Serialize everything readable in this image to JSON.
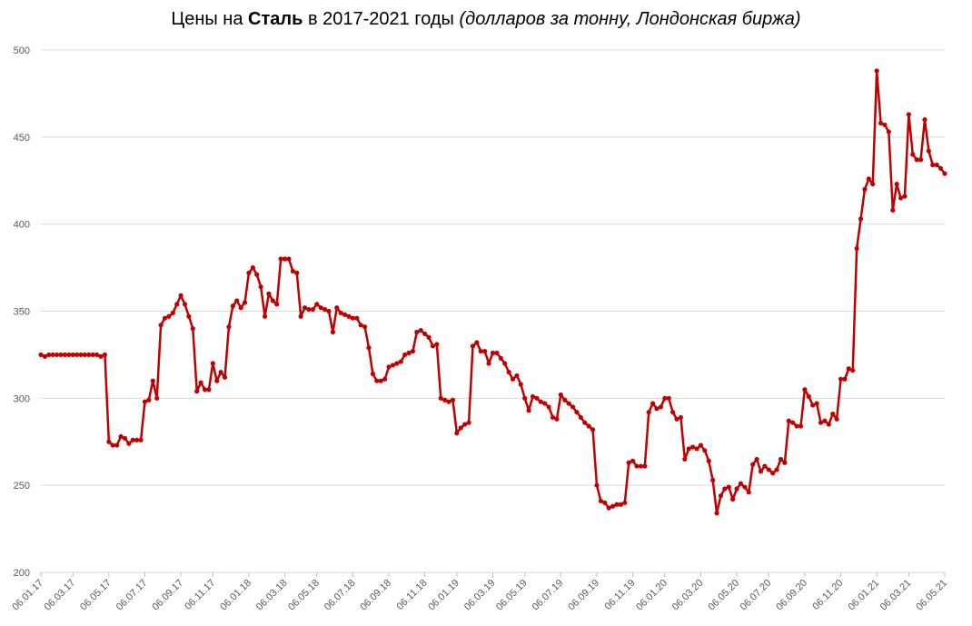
{
  "chart_data": {
    "type": "line",
    "title": [
      "Цены на ",
      "Сталь",
      " в 2017-2021 годы ",
      "(долларов за тонну, Лондонская биржа)"
    ],
    "categories": [
      "06.01.17",
      null,
      null,
      null,
      null,
      null,
      null,
      null,
      "06.03.17",
      null,
      null,
      null,
      null,
      null,
      null,
      null,
      null,
      "06.05.17",
      null,
      null,
      null,
      null,
      null,
      null,
      null,
      null,
      "06.07.17",
      null,
      null,
      null,
      null,
      null,
      null,
      null,
      null,
      "06.09.17",
      null,
      null,
      null,
      null,
      null,
      null,
      null,
      "06.11.17",
      null,
      null,
      null,
      null,
      null,
      null,
      null,
      null,
      "06.01.18",
      null,
      null,
      null,
      null,
      null,
      null,
      null,
      null,
      "06.03.18",
      null,
      null,
      null,
      null,
      null,
      null,
      null,
      "06.05.18",
      null,
      null,
      null,
      null,
      null,
      null,
      null,
      null,
      "06.07.18",
      null,
      null,
      null,
      null,
      null,
      null,
      null,
      null,
      "06.09.18",
      null,
      null,
      null,
      null,
      null,
      null,
      null,
      null,
      "06.11.18",
      null,
      null,
      null,
      null,
      null,
      null,
      null,
      "06.01.19",
      null,
      null,
      null,
      null,
      null,
      null,
      null,
      null,
      "06.03.19",
      null,
      null,
      null,
      null,
      null,
      null,
      null,
      "06.05.19",
      null,
      null,
      null,
      null,
      null,
      null,
      null,
      null,
      "06.07.19",
      null,
      null,
      null,
      null,
      null,
      null,
      null,
      null,
      "06.09.19",
      null,
      null,
      null,
      null,
      null,
      null,
      null,
      null,
      "06.11.19",
      null,
      null,
      null,
      null,
      null,
      null,
      null,
      "06.01.20",
      null,
      null,
      null,
      null,
      null,
      null,
      null,
      null,
      "06.03.20",
      null,
      null,
      null,
      null,
      null,
      null,
      null,
      null,
      "06.05.20",
      null,
      null,
      null,
      null,
      null,
      null,
      null,
      "06.07.20",
      null,
      null,
      null,
      null,
      null,
      null,
      null,
      null,
      "06.09.20",
      null,
      null,
      null,
      null,
      null,
      null,
      null,
      null,
      "06.11.20",
      null,
      null,
      null,
      null,
      null,
      null,
      null,
      null,
      "06.01.21",
      null,
      null,
      null,
      null,
      null,
      null,
      null,
      "06.03.21",
      null,
      null,
      null,
      null,
      null,
      null,
      null,
      null,
      "06.05.21"
    ],
    "values": [
      325,
      324,
      325,
      325,
      325,
      325,
      325,
      325,
      325,
      325,
      325,
      325,
      325,
      325,
      325,
      324,
      325,
      275,
      273,
      273,
      278,
      277,
      274,
      276,
      276,
      276,
      298,
      299,
      310,
      300,
      342,
      346,
      347,
      349,
      354,
      359,
      354,
      347,
      340,
      304,
      309,
      305,
      305,
      320,
      310,
      315,
      312,
      341,
      353,
      356,
      352,
      355,
      372,
      375,
      371,
      364,
      347,
      360,
      356,
      354,
      380,
      380,
      380,
      373,
      372,
      347,
      352,
      351,
      351,
      354,
      352,
      351,
      350,
      338,
      352,
      349,
      348,
      347,
      346,
      346,
      342,
      341,
      329,
      314,
      310,
      310,
      311,
      318,
      319,
      320,
      321,
      325,
      326,
      327,
      338,
      339,
      337,
      335,
      330,
      331,
      300,
      299,
      298,
      299,
      280,
      283,
      285,
      286,
      330,
      332,
      327,
      327,
      320,
      326,
      326,
      323,
      320,
      315,
      311,
      313,
      308,
      300,
      293,
      301,
      300,
      298,
      297,
      295,
      289,
      288,
      302,
      299,
      297,
      295,
      292,
      289,
      286,
      284,
      282,
      250,
      241,
      240,
      237,
      238,
      239,
      239,
      240,
      263,
      264,
      261,
      261,
      261,
      292,
      297,
      294,
      295,
      300,
      300,
      292,
      288,
      289,
      265,
      271,
      272,
      271,
      273,
      270,
      264,
      253,
      234,
      244,
      248,
      249,
      242,
      248,
      251,
      249,
      246,
      262,
      265,
      258,
      261,
      259,
      257,
      259,
      265,
      263,
      287,
      286,
      284,
      284,
      305,
      301,
      296,
      297,
      286,
      287,
      285,
      291,
      288,
      311,
      311,
      317,
      316,
      386,
      403,
      420,
      426,
      423,
      488,
      458,
      457,
      453,
      408,
      423,
      415,
      416,
      463,
      440,
      437,
      437,
      460,
      442,
      434,
      434,
      432,
      429
    ],
    "color": "#c00000",
    "ylim": [
      200,
      500
    ],
    "yticks": [
      200,
      250,
      300,
      350,
      400,
      450,
      500
    ],
    "grid": true
  }
}
